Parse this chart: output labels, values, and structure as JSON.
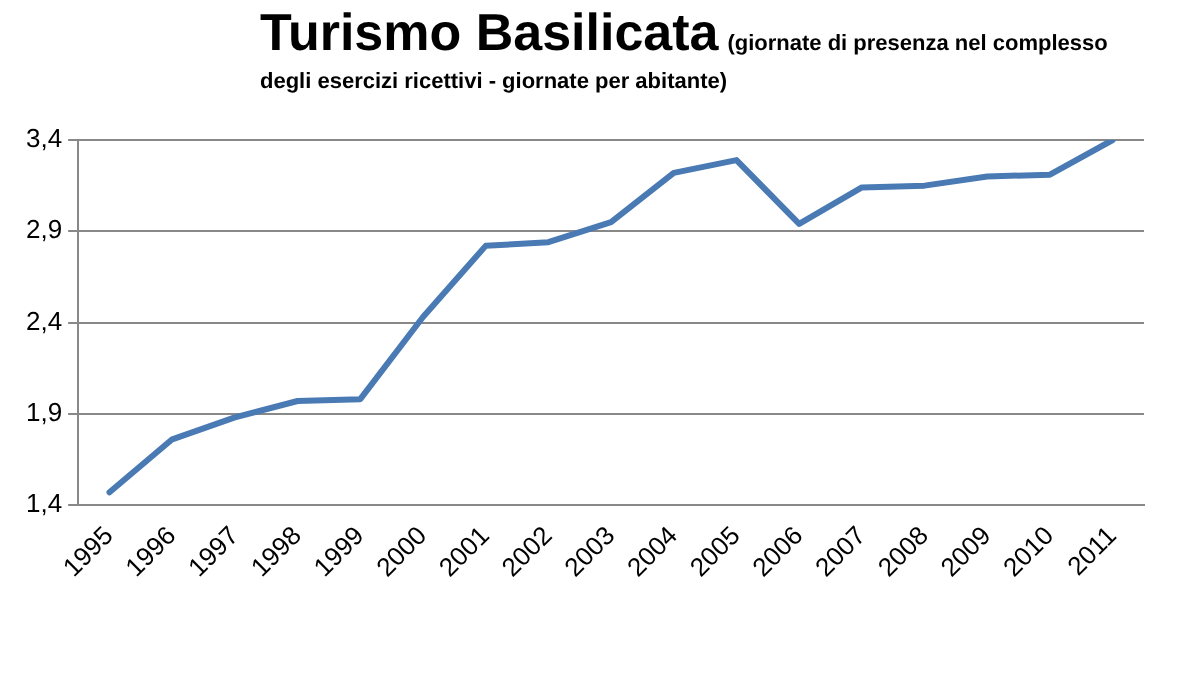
{
  "chart_data": {
    "type": "line",
    "title": "Turismo Basilicata",
    "subtitle": "(giornate di presenza nel complesso degli esercizi ricettivi - giornate per abitante)",
    "categories": [
      "1995",
      "1996",
      "1997",
      "1998",
      "1999",
      "2000",
      "2001",
      "2002",
      "2003",
      "2004",
      "2005",
      "2006",
      "2007",
      "2008",
      "2009",
      "2010",
      "2011"
    ],
    "series": [
      {
        "color": "#4a7ab4",
        "values": [
          1.47,
          1.76,
          1.88,
          1.97,
          1.98,
          2.43,
          2.82,
          2.84,
          2.95,
          3.22,
          3.29,
          2.94,
          3.14,
          3.15,
          3.2,
          3.21,
          3.4
        ]
      }
    ],
    "ylim": [
      1.4,
      3.4
    ],
    "yticks": [
      {
        "value": 1.4,
        "label": "1,4"
      },
      {
        "value": 1.9,
        "label": "1,9"
      },
      {
        "value": 2.4,
        "label": "2,4"
      },
      {
        "value": 2.9,
        "label": "2,9"
      },
      {
        "value": 3.4,
        "label": "3,4"
      }
    ],
    "grid": "y",
    "legend": false,
    "marker": "none",
    "line_style": "solid"
  }
}
